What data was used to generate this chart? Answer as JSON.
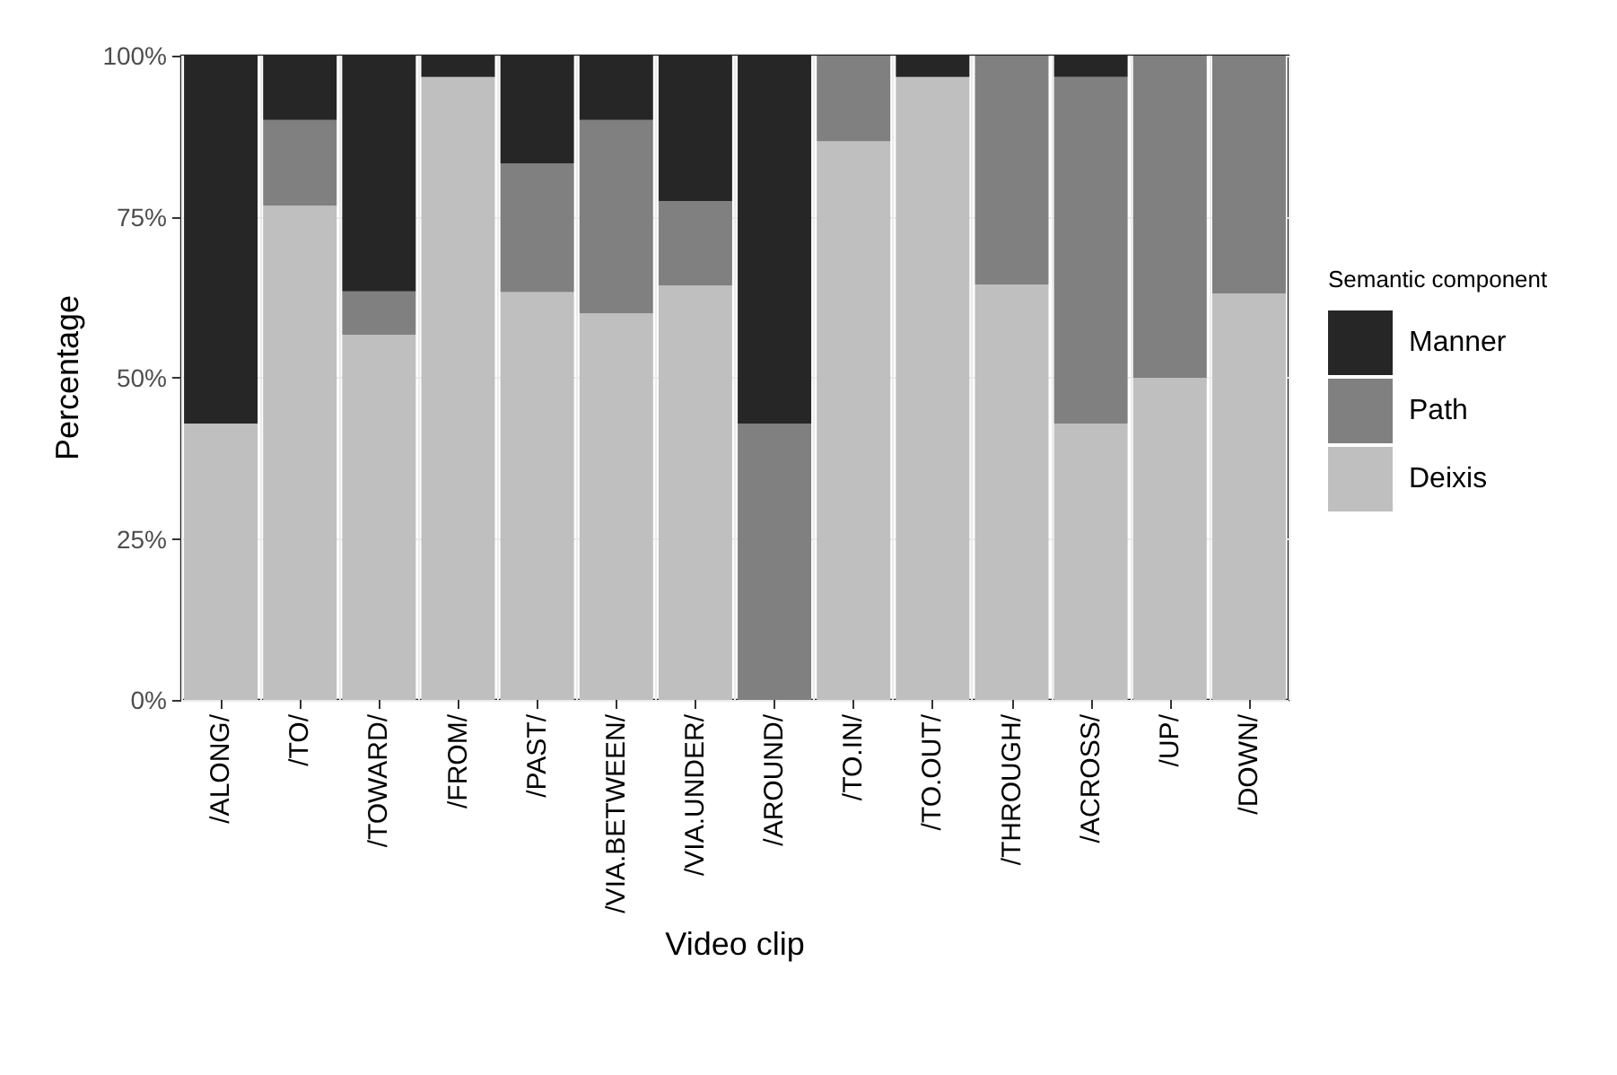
{
  "chart_data": {
    "type": "bar",
    "stacked": true,
    "xlabel": "Video clip",
    "ylabel": "Percentage",
    "legend_title": "Semantic component",
    "legend": "right",
    "grid": true,
    "categories": [
      "/ALONG/",
      "/TO/",
      "/TOWARD/",
      "/FROM/",
      "/PAST/",
      "/VIA.BETWEEN/",
      "/VIA.UNDER/",
      "/AROUND/",
      "/TO.IN/",
      "/TO.OUT/",
      "/THROUGH/",
      "/ACROSS/",
      "/UP/",
      "/DOWN/"
    ],
    "ylim": [
      0,
      100
    ],
    "yticks": [
      {
        "value": 0,
        "label": "0%"
      },
      {
        "value": 25,
        "label": "25%"
      },
      {
        "value": 50,
        "label": "50%"
      },
      {
        "value": 75,
        "label": "75%"
      },
      {
        "value": 100,
        "label": "100%"
      }
    ],
    "series": [
      {
        "name": "Deixis",
        "color": "#bfbfbf",
        "values": [
          42.9,
          76.7,
          56.7,
          96.7,
          63.3,
          60,
          64.3,
          0,
          86.7,
          96.7,
          64.5,
          42.9,
          50,
          63.1
        ]
      },
      {
        "name": "Path",
        "color": "#808080",
        "values": [
          0,
          13.3,
          6.7,
          0,
          20,
          30,
          13.1,
          42.9,
          13.3,
          0,
          35.5,
          53.8,
          50,
          36.9
        ]
      },
      {
        "name": "Manner",
        "color": "#262626",
        "values": [
          57.1,
          10,
          36.6,
          3.3,
          16.7,
          10,
          22.6,
          57.1,
          0,
          3.3,
          0,
          3.3,
          0,
          0
        ]
      }
    ]
  }
}
